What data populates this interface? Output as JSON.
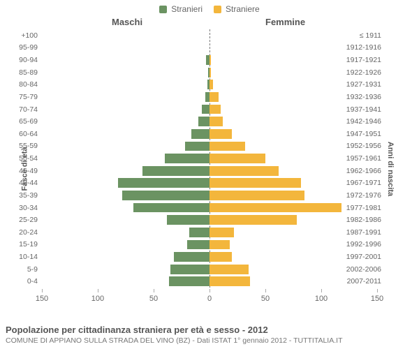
{
  "legend": {
    "male": {
      "label": "Stranieri",
      "color": "#6b9362"
    },
    "female": {
      "label": "Straniere",
      "color": "#f3b63c"
    }
  },
  "headers": {
    "male": "Maschi",
    "female": "Femmine"
  },
  "axis_left_title": "Fasce di età",
  "axis_right_title": "Anni di nascita",
  "chart": {
    "type": "population-pyramid",
    "xlim": 150,
    "xticks": [
      150,
      100,
      50,
      0,
      50,
      100,
      150
    ],
    "bar_color_male": "#6b9362",
    "bar_color_female": "#f3b63c",
    "background_color": "#ffffff",
    "tick_color": "#666666",
    "center_line_color": "#777777",
    "label_fontsize": 10.5,
    "rows": [
      {
        "age": "100+",
        "birth": "≤ 1911",
        "m": 0,
        "f": 0
      },
      {
        "age": "95-99",
        "birth": "1912-1916",
        "m": 0,
        "f": 0
      },
      {
        "age": "90-94",
        "birth": "1917-1921",
        "m": 3,
        "f": 1
      },
      {
        "age": "85-89",
        "birth": "1922-1926",
        "m": 1,
        "f": 1
      },
      {
        "age": "80-84",
        "birth": "1927-1931",
        "m": 2,
        "f": 3
      },
      {
        "age": "75-79",
        "birth": "1932-1936",
        "m": 4,
        "f": 8
      },
      {
        "age": "70-74",
        "birth": "1937-1941",
        "m": 7,
        "f": 10
      },
      {
        "age": "65-69",
        "birth": "1942-1946",
        "m": 10,
        "f": 12
      },
      {
        "age": "60-64",
        "birth": "1947-1951",
        "m": 16,
        "f": 20
      },
      {
        "age": "55-59",
        "birth": "1952-1956",
        "m": 22,
        "f": 32
      },
      {
        "age": "50-54",
        "birth": "1957-1961",
        "m": 40,
        "f": 50
      },
      {
        "age": "45-49",
        "birth": "1962-1966",
        "m": 60,
        "f": 62
      },
      {
        "age": "40-44",
        "birth": "1967-1971",
        "m": 82,
        "f": 82
      },
      {
        "age": "35-39",
        "birth": "1972-1976",
        "m": 78,
        "f": 85
      },
      {
        "age": "30-34",
        "birth": "1977-1981",
        "m": 68,
        "f": 118
      },
      {
        "age": "25-29",
        "birth": "1982-1986",
        "m": 38,
        "f": 78
      },
      {
        "age": "20-24",
        "birth": "1987-1991",
        "m": 18,
        "f": 22
      },
      {
        "age": "15-19",
        "birth": "1992-1996",
        "m": 20,
        "f": 18
      },
      {
        "age": "10-14",
        "birth": "1997-2001",
        "m": 32,
        "f": 20
      },
      {
        "age": "5-9",
        "birth": "2002-2006",
        "m": 35,
        "f": 35
      },
      {
        "age": "0-4",
        "birth": "2007-2011",
        "m": 36,
        "f": 36
      }
    ]
  },
  "footer": {
    "title": "Popolazione per cittadinanza straniera per età e sesso - 2012",
    "subtitle": "COMUNE DI APPIANO SULLA STRADA DEL VINO (BZ) - Dati ISTAT 1° gennaio 2012 - TUTTITALIA.IT"
  }
}
